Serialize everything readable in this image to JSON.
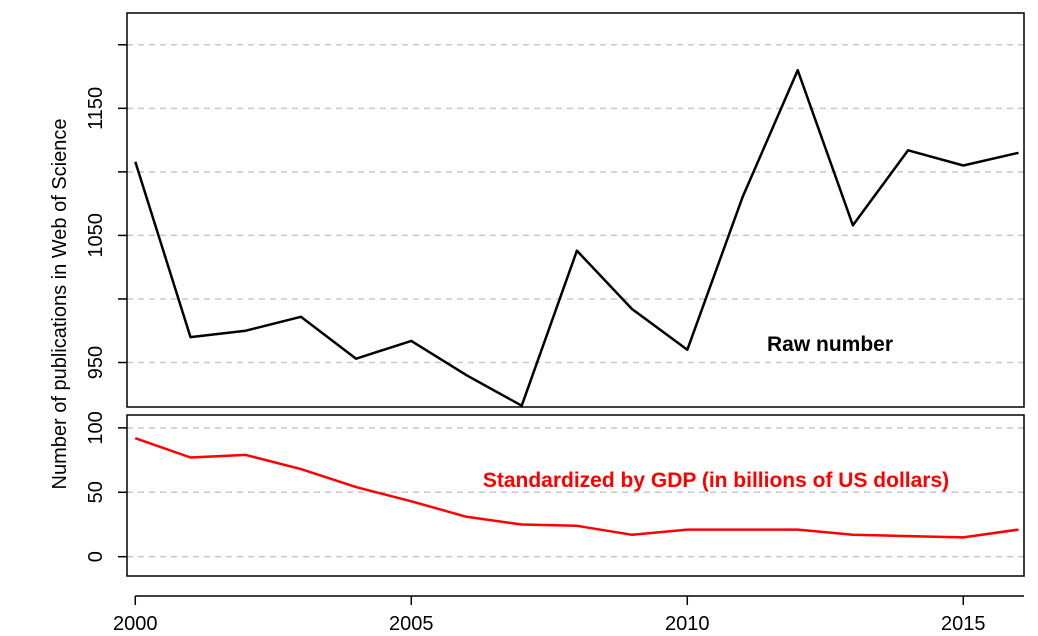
{
  "chart_data": [
    {
      "type": "line",
      "panel": "top",
      "ylabel": "Number of publications in Web of Science",
      "xlim": [
        1999.85,
        2016.1
      ],
      "ylim": [
        915,
        1225
      ],
      "yticks": [
        950,
        1050,
        1150
      ],
      "ygrid": [
        950,
        1000,
        1050,
        1100,
        1150,
        1200
      ],
      "grid": "horizontal dashed",
      "annotation": "Raw number",
      "line_color": "#000000",
      "series": [
        {
          "x": [
            2000,
            2001,
            2002,
            2003,
            2004,
            2005,
            2006,
            2007,
            2008,
            2009,
            2010,
            2011,
            2012,
            2013,
            2014,
            2015,
            2016
          ],
          "values": [
            1108,
            970,
            975,
            986,
            953,
            967,
            940,
            916,
            1038,
            992,
            960,
            1080,
            1180,
            1058,
            1117,
            1105,
            1115
          ]
        }
      ]
    },
    {
      "type": "line",
      "panel": "bottom",
      "xlim": [
        1999.85,
        2016.1
      ],
      "ylim": [
        -15,
        110
      ],
      "yticks": [
        0,
        50,
        100
      ],
      "xticks": [
        2000,
        2005,
        2010,
        2015
      ],
      "grid": "horizontal dashed",
      "annotation": "Standardized by GDP (in billions of US dollars)",
      "line_color": "#ff0000",
      "series": [
        {
          "x": [
            2000,
            2001,
            2002,
            2003,
            2004,
            2005,
            2006,
            2007,
            2008,
            2009,
            2010,
            2011,
            2012,
            2013,
            2014,
            2015,
            2016
          ],
          "values": [
            92,
            77,
            79,
            68,
            54,
            43,
            31,
            25,
            24,
            17,
            21,
            21,
            21,
            17,
            16,
            15,
            21
          ]
        }
      ]
    }
  ]
}
